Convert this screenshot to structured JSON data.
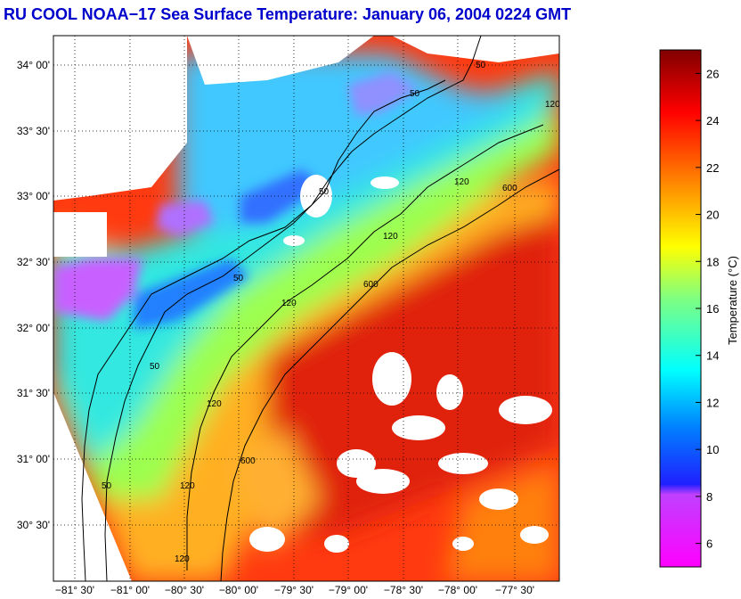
{
  "title": "RU COOL  NOAA−17  Sea Surface Temperature:  January 06, 2004 0224 GMT",
  "map": {
    "lat_labels": [
      "34° 00'",
      "33° 30'",
      "33° 00'",
      "32° 30'",
      "32° 00'",
      "31° 30'",
      "31° 00'",
      "30° 30'"
    ],
    "lon_labels": [
      "−81° 30'",
      "−81° 00'",
      "−80° 30'",
      "−80° 00'",
      "−79° 30'",
      "−79° 00'",
      "−78° 30'",
      "−78° 00'",
      "−77° 30'"
    ],
    "contour_labels": [
      "50",
      "120",
      "600"
    ],
    "grid": true
  },
  "colorbar": {
    "label": "Temperature (°C)",
    "ticks": [
      "26",
      "24",
      "22",
      "20",
      "18",
      "16",
      "14",
      "12",
      "10",
      "8",
      "6"
    ],
    "range": [
      5,
      27
    ]
  }
}
